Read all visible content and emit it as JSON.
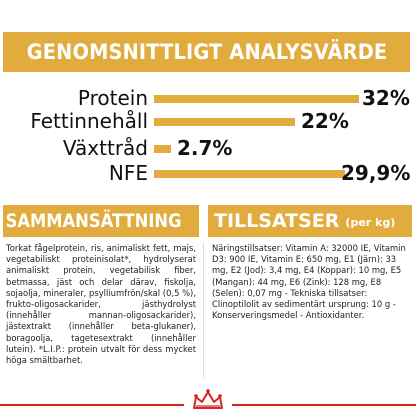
{
  "analysis": {
    "title": "GENOMSNITTLIGT ANALYSVÄRDE",
    "rows": [
      {
        "label": "Protein",
        "value": "32%",
        "percent": 32
      },
      {
        "label": "Fettinnehåll",
        "value": "22%",
        "percent": 22
      },
      {
        "label": "Växttråd",
        "value": "2.7%",
        "percent": 2.7
      },
      {
        "label": "NFE",
        "value": "29,9%",
        "percent": 29.9
      }
    ]
  },
  "composition": {
    "title": "SAMMANSÄTTNING",
    "text": "Torkat fågelprotein, ris, animaliskt fett, majs, vegetabiliskt proteinisolat*, hydrolyserat animaliskt protein, vegetabilisk fiber, betmassa, jäst och delar därav, fiskolja, sojaolja, mineraler, psylliumfrön/skal (0,5 %), frukto-oligosackarider, jästhydrolyst (innehåller mannan-oligosackarider), jästextrakt (innehåller beta-glukaner), boragoolja, tagetesextrakt (innehåller lutein). *L.I.P.: protein utvalt för dess mycket höga smältbarhet."
  },
  "additives": {
    "title": "TILLSATSER",
    "unit": "(per kg)",
    "text": "Näringstillsatser: Vitamin A: 32000 IE, Vitamin D3: 900 IE, Vitamin E: 650 mg, E1 (Järn): 33 mg, E2 (Jod): 3,4 mg, E4 (Koppar): 10 mg, E5 (Mangan): 44 mg, E6 (Zink): 128 mg, E8 (Selen): 0,07 mg - Tekniska tillsatser: Clinoptilolit av sedimentärt ursprung: 10 g - Konserveringsmedel - Antioxidanter."
  },
  "colors": {
    "accent": "#e2ab3e",
    "brand_red": "#d8261f"
  },
  "footer": {
    "logo": "crown-logo-icon"
  }
}
